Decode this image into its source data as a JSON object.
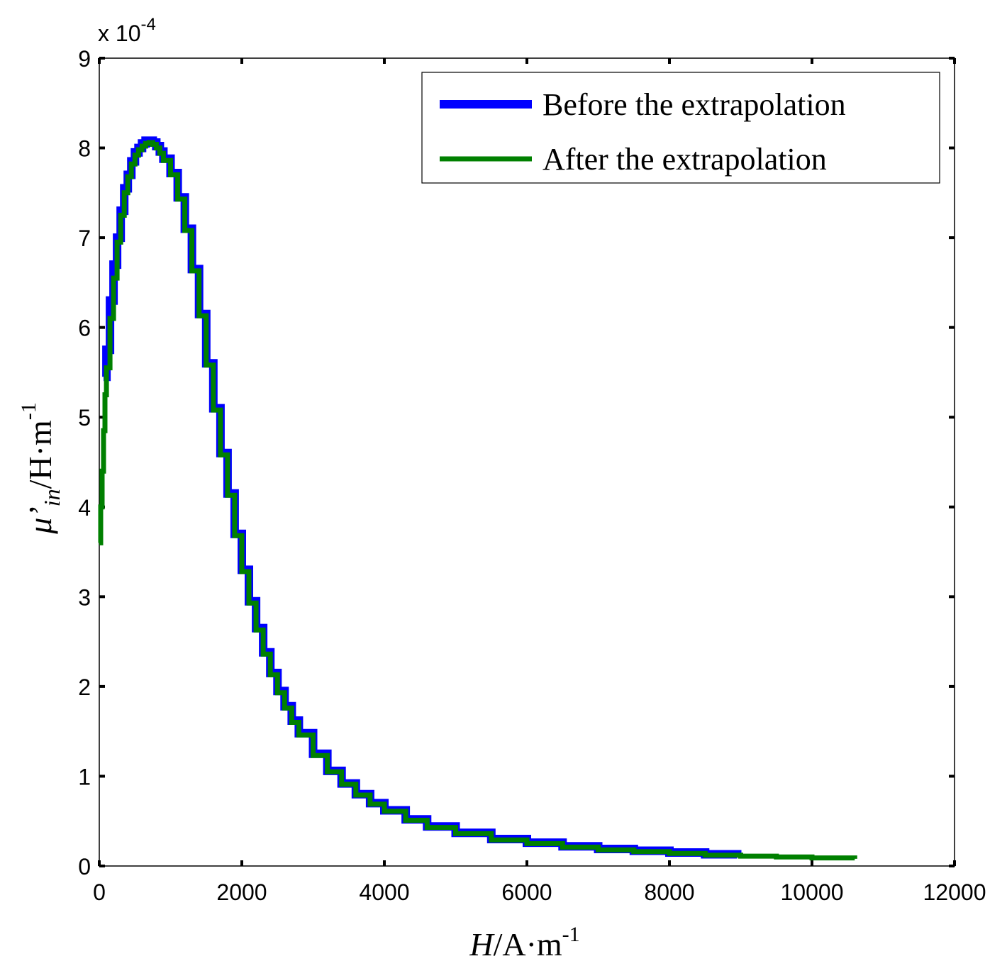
{
  "chart_data": {
    "type": "line",
    "xlabel": {
      "main": "H",
      "unit": "/A·m",
      "exp": "-1"
    },
    "ylabel": {
      "mu": "μ",
      "prime": "’",
      "sub": "in",
      "unit": "/H·m",
      "exp": "-1"
    },
    "y_multiplier": {
      "text": "x 10",
      "exp": "-4"
    },
    "xlim": [
      0,
      12000
    ],
    "ylim": [
      0,
      9
    ],
    "x_ticks": [
      0,
      2000,
      4000,
      6000,
      8000,
      10000,
      12000
    ],
    "x_tick_labels": [
      "0",
      "2000",
      "4000",
      "6000",
      "8000",
      "10000",
      "12000"
    ],
    "y_ticks": [
      0,
      1,
      2,
      3,
      4,
      5,
      6,
      7,
      8,
      9
    ],
    "y_tick_labels": [
      "0",
      "1",
      "2",
      "3",
      "4",
      "5",
      "6",
      "7",
      "8",
      "9"
    ],
    "grid": false,
    "legend_position": "top-right",
    "series": [
      {
        "name": "Before the extrapolation",
        "color": "#0000ff",
        "x": [
          60,
          100,
          150,
          200,
          250,
          300,
          350,
          400,
          450,
          500,
          550,
          600,
          650,
          700,
          750,
          800,
          850,
          900,
          1000,
          1100,
          1200,
          1300,
          1400,
          1500,
          1600,
          1700,
          1800,
          1900,
          2000,
          2100,
          2200,
          2300,
          2400,
          2500,
          2600,
          2700,
          2800,
          3000,
          3200,
          3400,
          3600,
          3800,
          4000,
          4300,
          4600,
          5000,
          5500,
          6000,
          6500,
          7000,
          7500,
          8000,
          8500,
          8950
        ],
        "y": [
          5.45,
          5.75,
          6.3,
          6.7,
          7.0,
          7.3,
          7.55,
          7.7,
          7.85,
          7.95,
          8.0,
          8.05,
          8.08,
          8.08,
          8.06,
          8.02,
          7.96,
          7.88,
          7.72,
          7.45,
          7.1,
          6.65,
          6.15,
          5.6,
          5.1,
          4.6,
          4.15,
          3.7,
          3.3,
          2.95,
          2.65,
          2.38,
          2.15,
          1.95,
          1.78,
          1.62,
          1.48,
          1.25,
          1.06,
          0.92,
          0.8,
          0.7,
          0.62,
          0.52,
          0.44,
          0.37,
          0.3,
          0.26,
          0.22,
          0.19,
          0.17,
          0.15,
          0.13,
          0.11
        ]
      },
      {
        "name": "After the extrapolation",
        "color": "#008000",
        "x": [
          0,
          20,
          40,
          60,
          80,
          100,
          150,
          200,
          250,
          300,
          350,
          400,
          450,
          500,
          550,
          600,
          650,
          700,
          750,
          800,
          850,
          900,
          1000,
          1100,
          1200,
          1300,
          1400,
          1500,
          1600,
          1700,
          1800,
          1900,
          2000,
          2100,
          2200,
          2300,
          2400,
          2500,
          2600,
          2700,
          2800,
          3000,
          3200,
          3400,
          3600,
          3800,
          4000,
          4300,
          4600,
          5000,
          5500,
          6000,
          6500,
          7000,
          7500,
          8000,
          8500,
          9000,
          9500,
          10000,
          10600
        ],
        "y": [
          3.6,
          4.0,
          4.4,
          4.85,
          5.25,
          5.55,
          6.1,
          6.55,
          6.95,
          7.25,
          7.5,
          7.68,
          7.82,
          7.92,
          7.98,
          8.02,
          8.05,
          8.06,
          8.04,
          8.0,
          7.94,
          7.86,
          7.7,
          7.43,
          7.08,
          6.63,
          6.13,
          5.58,
          5.08,
          4.58,
          4.13,
          3.68,
          3.28,
          2.93,
          2.63,
          2.36,
          2.13,
          1.93,
          1.76,
          1.6,
          1.46,
          1.23,
          1.05,
          0.91,
          0.79,
          0.69,
          0.61,
          0.51,
          0.43,
          0.36,
          0.29,
          0.25,
          0.21,
          0.18,
          0.16,
          0.14,
          0.12,
          0.11,
          0.1,
          0.09,
          0.08
        ]
      }
    ]
  }
}
